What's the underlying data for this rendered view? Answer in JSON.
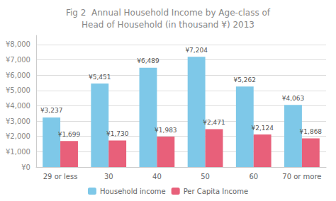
{
  "chart_data": {
    "type": "bar",
    "title": "Fig 2  Annual Household Income by Age-class of\nHead of Household (in thousand ¥) 2013",
    "categories": [
      "29 or less",
      "30",
      "40",
      "50",
      "60",
      "70 or more"
    ],
    "series": [
      {
        "name": "Household income",
        "color": "#7ec8e8",
        "values": [
          3237,
          5451,
          6489,
          7204,
          5262,
          4063
        ],
        "value_labels": [
          "¥3,237",
          "¥5,451",
          "¥6,489",
          "¥7,204",
          "¥5,262",
          "¥4,063"
        ]
      },
      {
        "name": "Per Capita Income",
        "color": "#e8607a",
        "values": [
          1699,
          1730,
          1983,
          2471,
          2124,
          1868
        ],
        "value_labels": [
          "¥1,699",
          "¥1,730",
          "¥1,983",
          "¥2,471",
          "¥2,124",
          "¥1,868"
        ]
      }
    ],
    "ylim": [
      0,
      8600
    ],
    "yticks": [
      {
        "value": 0,
        "label": "¥0"
      },
      {
        "value": 1000,
        "label": "¥1,000"
      },
      {
        "value": 2000,
        "label": "¥2,000"
      },
      {
        "value": 3000,
        "label": "¥3,000"
      },
      {
        "value": 4000,
        "label": "¥4,000"
      },
      {
        "value": 5000,
        "label": "¥5,000"
      },
      {
        "value": 6000,
        "label": "¥6,000"
      },
      {
        "value": 7000,
        "label": "¥7,000"
      },
      {
        "value": 8000,
        "label": "¥8,000"
      }
    ],
    "grid": true,
    "legend": "bottom",
    "data_labels": true
  }
}
